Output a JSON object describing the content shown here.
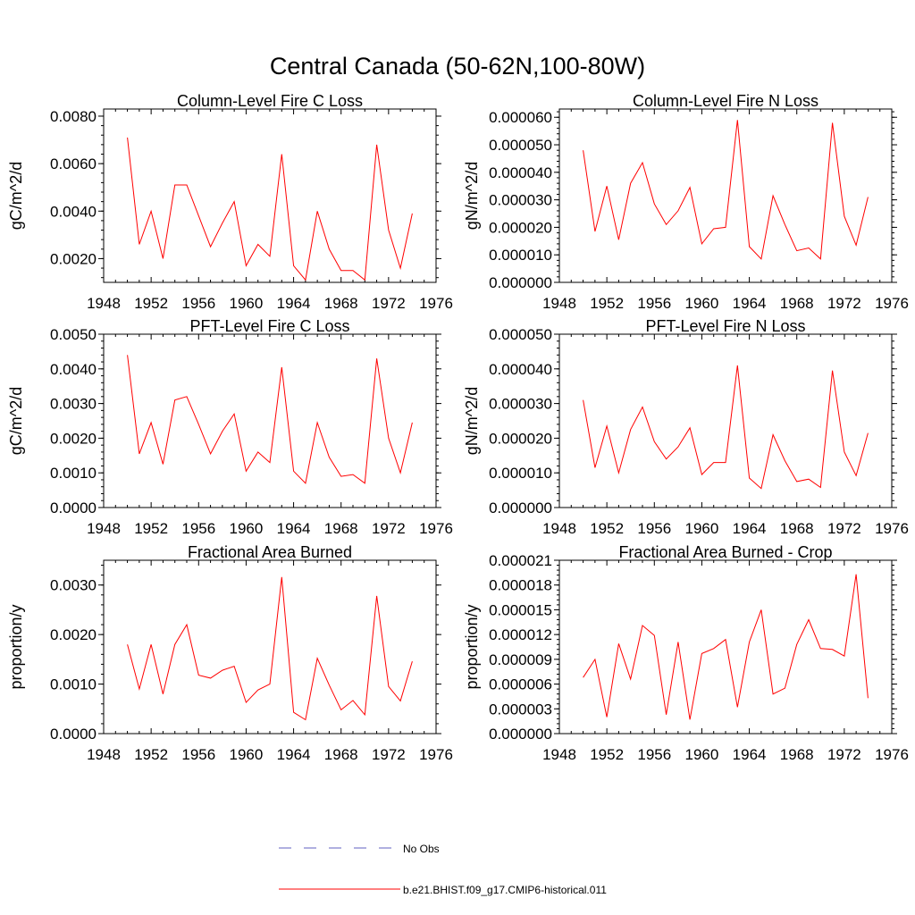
{
  "title": "Central Canada (50-62N,100-80W)",
  "line_color": "#ff0000",
  "obs_color": "#6060c0",
  "legend": {
    "obs_label": "No Obs",
    "model_label": "b.e21.BHIST.f09_g17.CMIP6-historical.011"
  },
  "chart_data": [
    {
      "type": "line",
      "title": "Column-Level Fire C Loss",
      "ylabel": "gC/m^2/d",
      "xlim": [
        1948,
        1976
      ],
      "ylim": [
        0.001,
        0.0083
      ],
      "xticks": [
        1948,
        1952,
        1956,
        1960,
        1964,
        1968,
        1972,
        1976
      ],
      "yticks": [
        0.002,
        0.004,
        0.006,
        0.008
      ],
      "ytick_labels": [
        "0.0020",
        "0.0040",
        "0.0060",
        "0.0080"
      ],
      "x": [
        1950,
        1951,
        1952,
        1953,
        1954,
        1955,
        1956,
        1957,
        1958,
        1959,
        1960,
        1961,
        1962,
        1963,
        1964,
        1965,
        1966,
        1967,
        1968,
        1969,
        1970,
        1971,
        1972,
        1973,
        1974
      ],
      "series": [
        {
          "values": [
            0.0071,
            0.0026,
            0.004,
            0.002,
            0.0051,
            0.0051,
            0.0038,
            0.0025,
            0.0035,
            0.0044,
            0.0017,
            0.0026,
            0.0021,
            0.0064,
            0.0017,
            0.0011,
            0.004,
            0.0024,
            0.0015,
            0.0015,
            0.0011,
            0.0068,
            0.0032,
            0.0016,
            0.0039
          ]
        }
      ]
    },
    {
      "type": "line",
      "title": "Column-Level Fire N Loss",
      "ylabel": "gN/m^2/d",
      "xlim": [
        1948,
        1976
      ],
      "ylim": [
        0.0,
        6.3e-05
      ],
      "xticks": [
        1948,
        1952,
        1956,
        1960,
        1964,
        1968,
        1972,
        1976
      ],
      "yticks": [
        0,
        1e-05,
        2e-05,
        3e-05,
        4e-05,
        5e-05,
        6e-05
      ],
      "ytick_labels": [
        "0.000000",
        "0.000010",
        "0.000020",
        "0.000030",
        "0.000040",
        "0.000050",
        "0.000060"
      ],
      "x": [
        1950,
        1951,
        1952,
        1953,
        1954,
        1955,
        1956,
        1957,
        1958,
        1959,
        1960,
        1961,
        1962,
        1963,
        1964,
        1965,
        1966,
        1967,
        1968,
        1969,
        1970,
        1971,
        1972,
        1973,
        1974
      ],
      "series": [
        {
          "values": [
            4.8e-05,
            1.85e-05,
            3.5e-05,
            1.55e-05,
            3.6e-05,
            4.35e-05,
            2.85e-05,
            2.1e-05,
            2.6e-05,
            3.45e-05,
            1.4e-05,
            1.95e-05,
            2e-05,
            5.9e-05,
            1.3e-05,
            8.5e-06,
            3.15e-05,
            2.1e-05,
            1.15e-05,
            1.25e-05,
            8.5e-06,
            5.8e-05,
            2.4e-05,
            1.35e-05,
            3.1e-05
          ]
        }
      ]
    },
    {
      "type": "line",
      "title": "PFT-Level Fire C Loss",
      "ylabel": "gC/m^2/d",
      "xlim": [
        1948,
        1976
      ],
      "ylim": [
        0.0,
        0.005
      ],
      "xticks": [
        1948,
        1952,
        1956,
        1960,
        1964,
        1968,
        1972,
        1976
      ],
      "yticks": [
        0,
        0.001,
        0.002,
        0.003,
        0.004,
        0.005
      ],
      "ytick_labels": [
        "0.0000",
        "0.0010",
        "0.0020",
        "0.0030",
        "0.0040",
        "0.0050"
      ],
      "x": [
        1950,
        1951,
        1952,
        1953,
        1954,
        1955,
        1956,
        1957,
        1958,
        1959,
        1960,
        1961,
        1962,
        1963,
        1964,
        1965,
        1966,
        1967,
        1968,
        1969,
        1970,
        1971,
        1972,
        1973,
        1974
      ],
      "series": [
        {
          "values": [
            0.0044,
            0.00155,
            0.00245,
            0.00125,
            0.0031,
            0.0032,
            0.0024,
            0.00155,
            0.0022,
            0.0027,
            0.00105,
            0.0016,
            0.0013,
            0.00405,
            0.00105,
            0.0007,
            0.00245,
            0.00145,
            0.0009,
            0.00095,
            0.0007,
            0.0043,
            0.002,
            0.001,
            0.00245
          ]
        }
      ]
    },
    {
      "type": "line",
      "title": "PFT-Level Fire N Loss",
      "ylabel": "gN/m^2/d",
      "xlim": [
        1948,
        1976
      ],
      "ylim": [
        0.0,
        5e-05
      ],
      "xticks": [
        1948,
        1952,
        1956,
        1960,
        1964,
        1968,
        1972,
        1976
      ],
      "yticks": [
        0,
        1e-05,
        2e-05,
        3e-05,
        4e-05,
        5e-05
      ],
      "ytick_labels": [
        "0.000000",
        "0.000010",
        "0.000020",
        "0.000030",
        "0.000040",
        "0.000050"
      ],
      "x": [
        1950,
        1951,
        1952,
        1953,
        1954,
        1955,
        1956,
        1957,
        1958,
        1959,
        1960,
        1961,
        1962,
        1963,
        1964,
        1965,
        1966,
        1967,
        1968,
        1969,
        1970,
        1971,
        1972,
        1973,
        1974
      ],
      "series": [
        {
          "values": [
            3.1e-05,
            1.15e-05,
            2.35e-05,
            1e-05,
            2.25e-05,
            2.9e-05,
            1.9e-05,
            1.4e-05,
            1.75e-05,
            2.3e-05,
            9.5e-06,
            1.3e-05,
            1.3e-05,
            4.1e-05,
            8.5e-06,
            5.5e-06,
            2.1e-05,
            1.35e-05,
            7.5e-06,
            8.2e-06,
            5.8e-06,
            3.95e-05,
            1.6e-05,
            9.2e-06,
            2.15e-05
          ]
        }
      ]
    },
    {
      "type": "line",
      "title": "Fractional Area Burned",
      "ylabel": "proportion/y",
      "xlim": [
        1948,
        1976
      ],
      "ylim": [
        0.0,
        0.0035
      ],
      "xticks": [
        1948,
        1952,
        1956,
        1960,
        1964,
        1968,
        1972,
        1976
      ],
      "yticks": [
        0,
        0.001,
        0.002,
        0.003
      ],
      "ytick_labels": [
        "0.0000",
        "0.0010",
        "0.0020",
        "0.0030"
      ],
      "x": [
        1950,
        1951,
        1952,
        1953,
        1954,
        1955,
        1956,
        1957,
        1958,
        1959,
        1960,
        1961,
        1962,
        1963,
        1964,
        1965,
        1966,
        1967,
        1968,
        1969,
        1970,
        1971,
        1972,
        1973,
        1974
      ],
      "series": [
        {
          "values": [
            0.0018,
            0.0009,
            0.0018,
            0.0008,
            0.0018,
            0.0022,
            0.00118,
            0.00112,
            0.00128,
            0.00136,
            0.00063,
            0.00088,
            0.001,
            0.00316,
            0.00043,
            0.00028,
            0.00152,
            0.00098,
            0.00048,
            0.00067,
            0.00038,
            0.00278,
            0.00095,
            0.00066,
            0.00146
          ]
        }
      ]
    },
    {
      "type": "line",
      "title": "Fractional Area Burned - Crop",
      "ylabel": "proportion/y",
      "xlim": [
        1948,
        1976
      ],
      "ylim": [
        0.0,
        2.1e-05
      ],
      "xticks": [
        1948,
        1952,
        1956,
        1960,
        1964,
        1968,
        1972,
        1976
      ],
      "yticks": [
        0,
        3e-06,
        6e-06,
        9e-06,
        1.2e-05,
        1.5e-05,
        1.8e-05,
        2.1e-05
      ],
      "ytick_labels": [
        "0.000000",
        "0.000003",
        "0.000006",
        "0.000009",
        "0.000012",
        "0.000015",
        "0.000018",
        "0.000021"
      ],
      "x": [
        1950,
        1951,
        1952,
        1953,
        1954,
        1955,
        1956,
        1957,
        1958,
        1959,
        1960,
        1961,
        1962,
        1963,
        1964,
        1965,
        1966,
        1967,
        1968,
        1969,
        1970,
        1971,
        1972,
        1973,
        1974
      ],
      "series": [
        {
          "values": [
            6.8e-06,
            9e-06,
            2e-06,
            1.09e-05,
            6.6e-06,
            1.31e-05,
            1.19e-05,
            2.3e-06,
            1.11e-05,
            1.7e-06,
            9.7e-06,
            1.03e-05,
            1.14e-05,
            3.2e-06,
            1.11e-05,
            1.5e-05,
            4.8e-06,
            5.5e-06,
            1.08e-05,
            1.38e-05,
            1.03e-05,
            1.02e-05,
            9.4e-06,
            1.93e-05,
            4.3e-06
          ]
        }
      ]
    }
  ]
}
